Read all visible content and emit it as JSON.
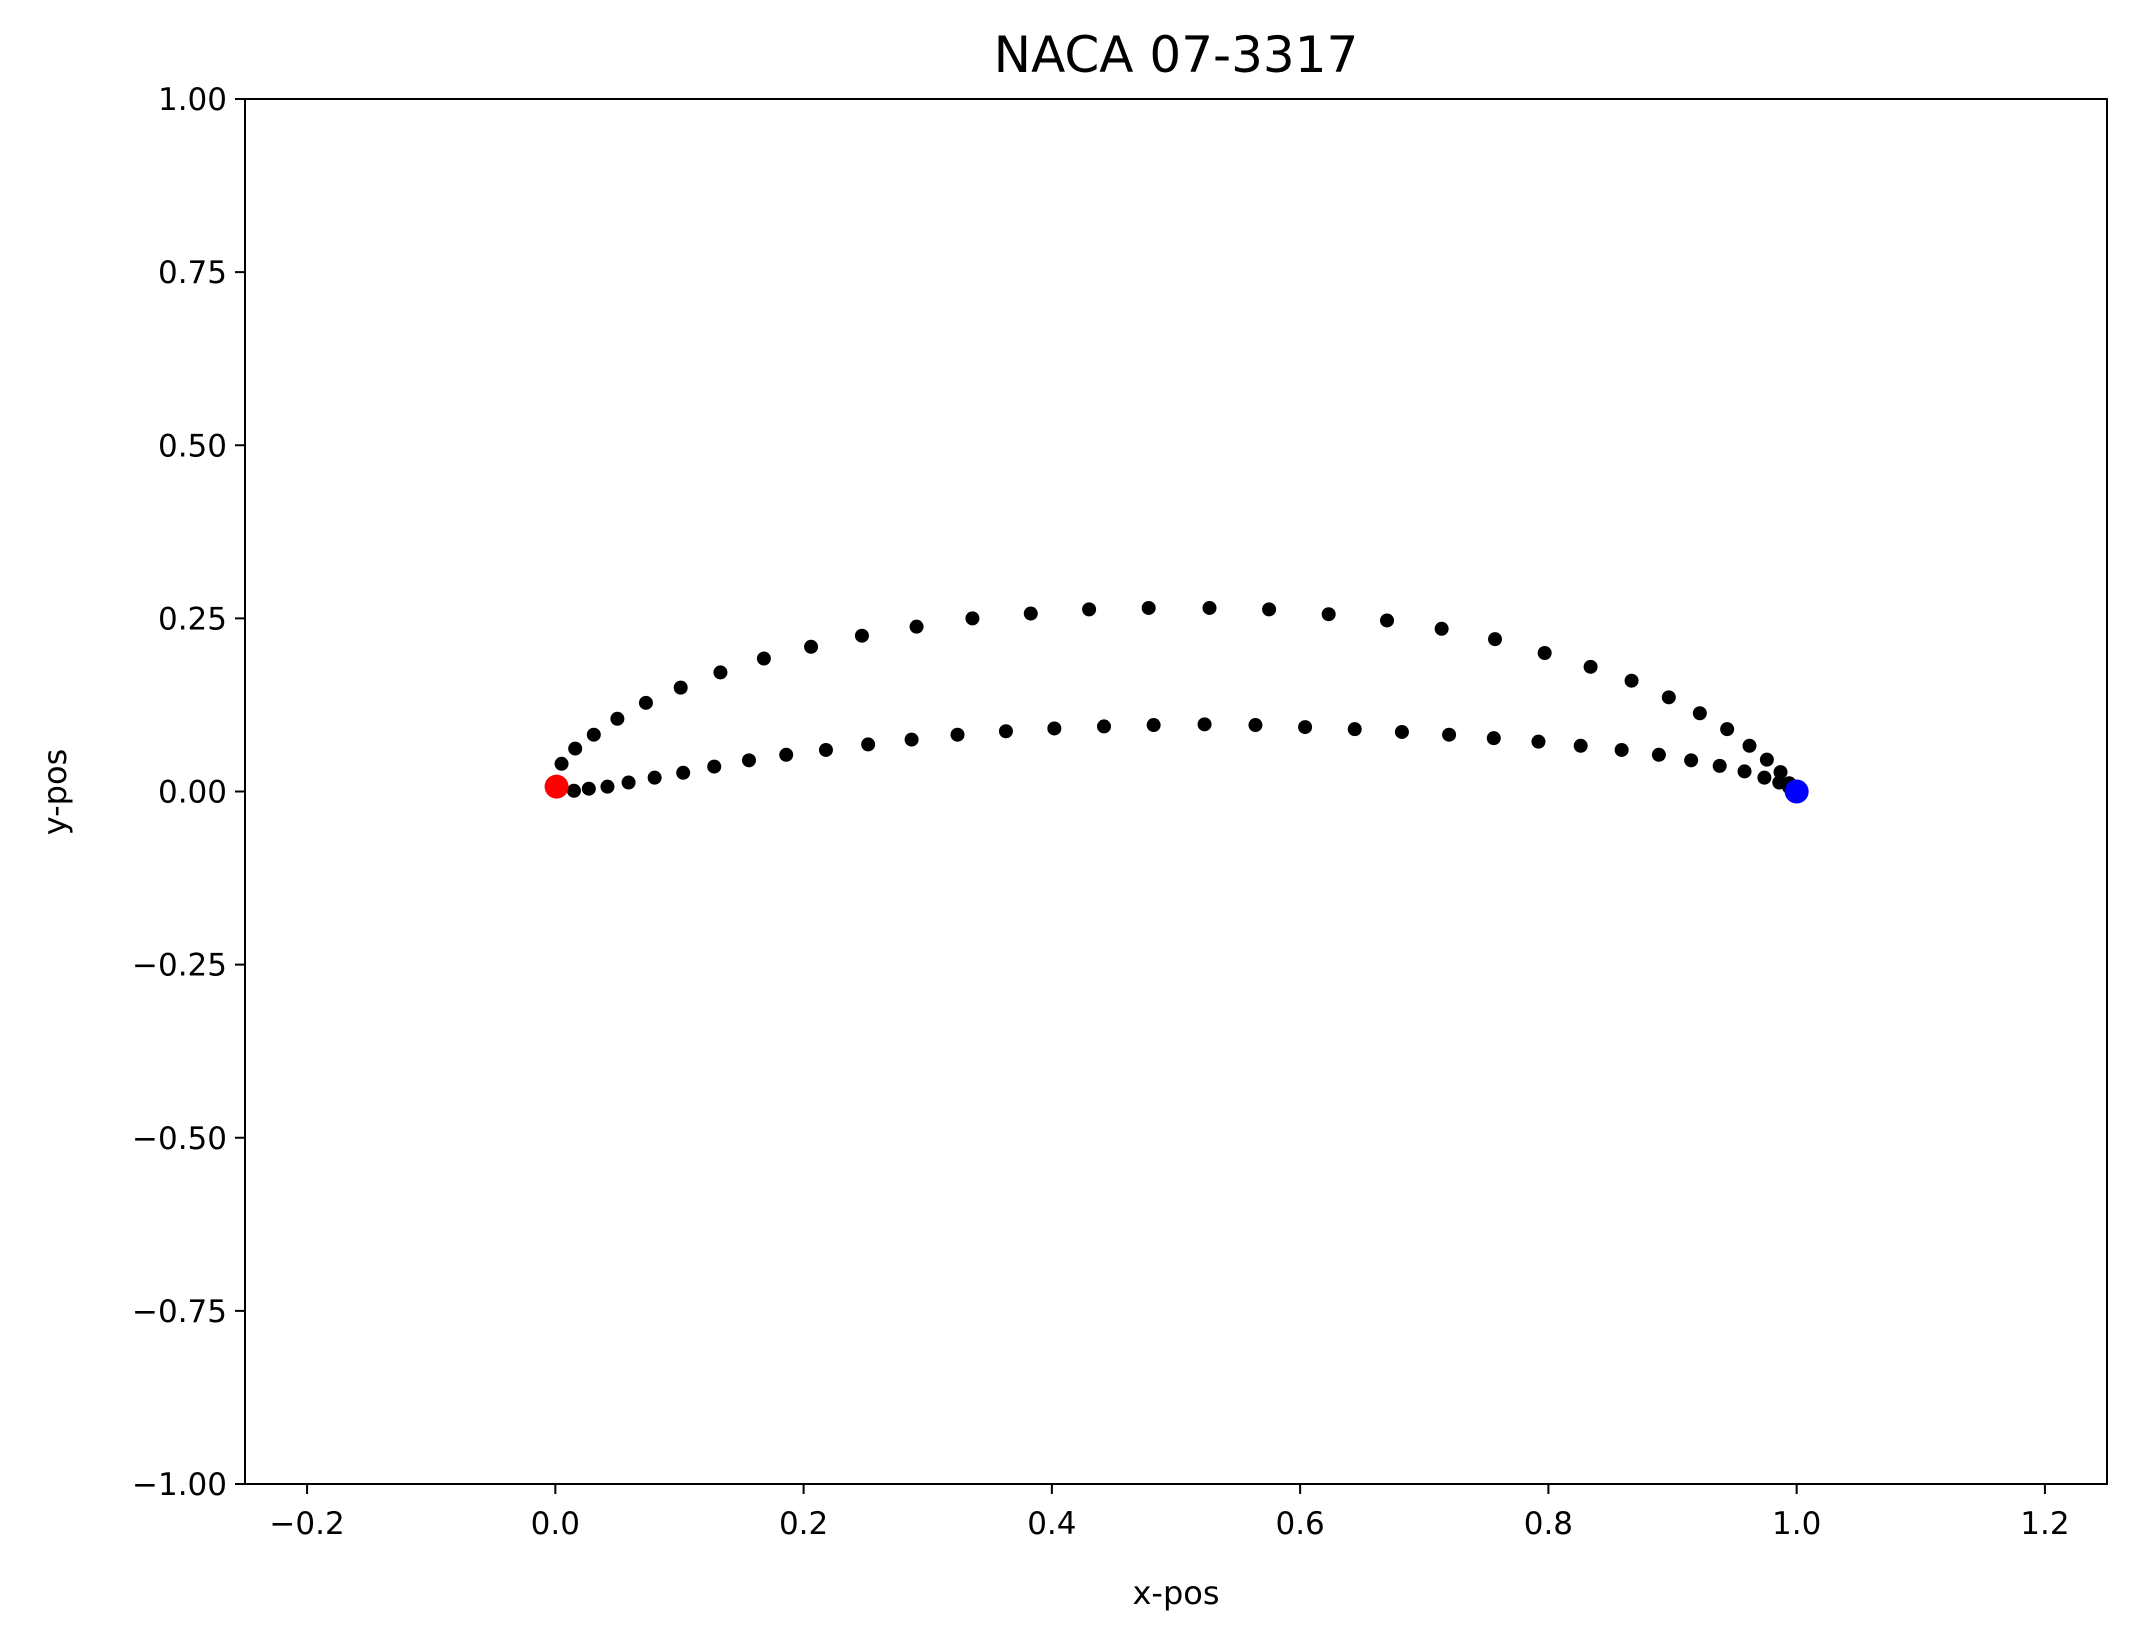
{
  "chart_data": {
    "type": "scatter",
    "title": "NACA 07-3317",
    "xlabel": "x-pos",
    "ylabel": "y-pos",
    "xlim": [
      -0.25,
      1.25
    ],
    "ylim": [
      -1.0,
      1.0
    ],
    "xticks": [
      -0.2,
      0.0,
      0.2,
      0.4,
      0.6,
      0.8,
      1.0,
      1.2
    ],
    "xtick_labels": [
      "−0.2",
      "0.0",
      "0.2",
      "0.4",
      "0.6",
      "0.8",
      "1.0",
      "1.2"
    ],
    "yticks": [
      -1.0,
      -0.75,
      -0.5,
      -0.25,
      0.0,
      0.25,
      0.5,
      0.75,
      1.0
    ],
    "ytick_labels": [
      "−1.00",
      "−0.75",
      "−0.50",
      "−0.25",
      "0.00",
      "0.25",
      "0.50",
      "0.75",
      "1.00"
    ],
    "grid": false,
    "series": [
      {
        "color": "#000000",
        "marker": "point",
        "x": [
          0.005,
          0.016,
          0.031,
          0.05,
          0.073,
          0.101,
          0.133,
          0.168,
          0.206,
          0.247,
          0.291,
          0.336,
          0.383,
          0.43,
          0.478,
          0.527,
          0.575,
          0.623,
          0.67,
          0.714,
          0.757,
          0.797,
          0.834,
          0.867,
          0.897,
          0.922,
          0.944,
          0.962,
          0.976,
          0.987,
          0.994,
          0.015,
          0.027,
          0.042,
          0.059,
          0.08,
          0.103,
          0.128,
          0.156,
          0.186,
          0.218,
          0.252,
          0.287,
          0.324,
          0.363,
          0.402,
          0.442,
          0.482,
          0.523,
          0.564,
          0.604,
          0.644,
          0.682,
          0.72,
          0.756,
          0.792,
          0.826,
          0.859,
          0.889,
          0.915,
          0.938,
          0.958,
          0.974,
          0.986,
          0.994
        ],
        "y": [
          0.04,
          0.062,
          0.082,
          0.105,
          0.128,
          0.15,
          0.172,
          0.192,
          0.209,
          0.225,
          0.238,
          0.25,
          0.257,
          0.263,
          0.265,
          0.265,
          0.263,
          0.256,
          0.247,
          0.235,
          0.22,
          0.2,
          0.18,
          0.16,
          0.136,
          0.113,
          0.09,
          0.066,
          0.046,
          0.028,
          0.012,
          0.001,
          0.004,
          0.007,
          0.013,
          0.02,
          0.027,
          0.036,
          0.045,
          0.053,
          0.06,
          0.068,
          0.075,
          0.082,
          0.087,
          0.091,
          0.094,
          0.096,
          0.097,
          0.096,
          0.093,
          0.09,
          0.086,
          0.082,
          0.077,
          0.072,
          0.066,
          0.06,
          0.053,
          0.045,
          0.037,
          0.029,
          0.02,
          0.013,
          0.006
        ]
      },
      {
        "color": "#ff0000",
        "marker": "circle",
        "x": [
          0.001
        ],
        "y": [
          0.007
        ]
      },
      {
        "color": "#0000ff",
        "marker": "circle",
        "x": [
          1.0
        ],
        "y": [
          0.0
        ]
      }
    ]
  }
}
